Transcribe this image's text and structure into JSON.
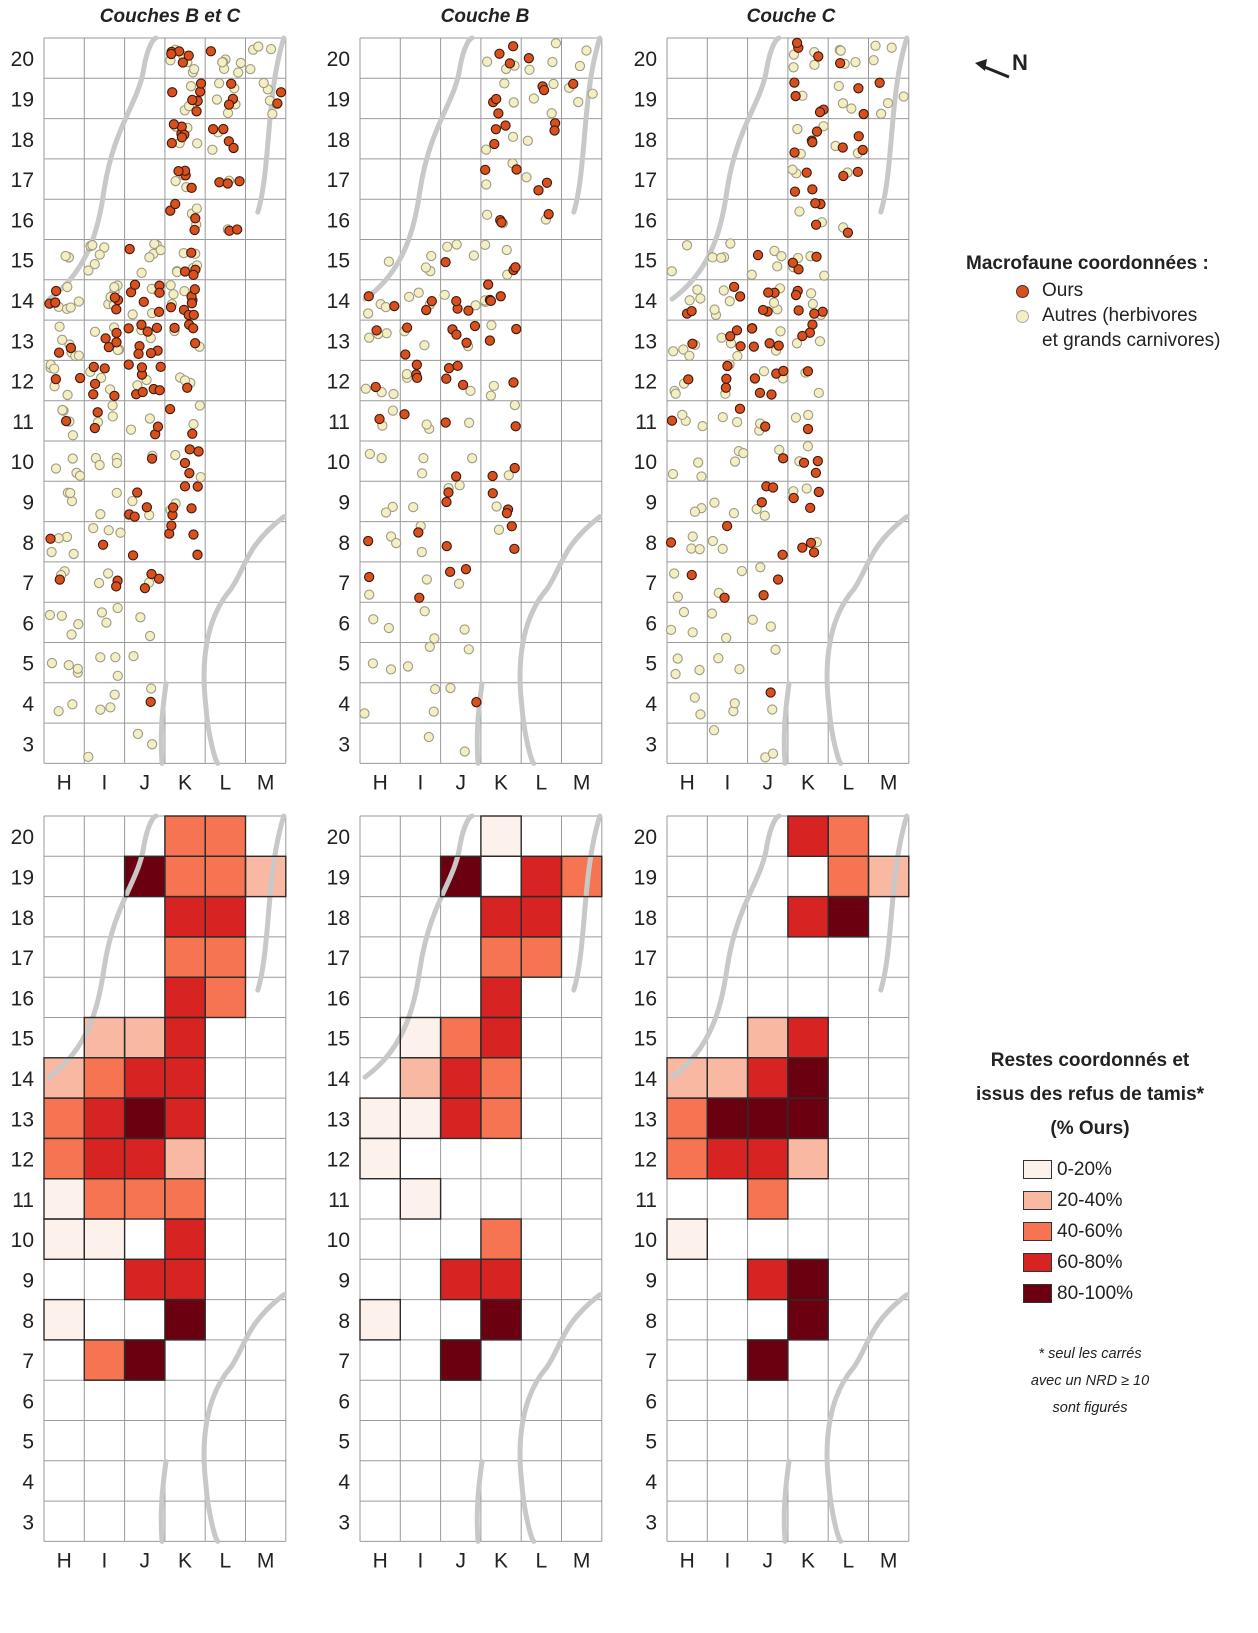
{
  "panel_titles": [
    "Couches B et C",
    "Couche B",
    "Couche C"
  ],
  "north_label": "N",
  "columns": [
    "H",
    "I",
    "J",
    "K",
    "L",
    "M"
  ],
  "rows": [
    "20",
    "19",
    "18",
    "17",
    "16",
    "15",
    "14",
    "13",
    "12",
    "11",
    "10",
    "9",
    "8",
    "7",
    "6",
    "5",
    "4",
    "3"
  ],
  "legend_points": {
    "title": "Macrofaune coordonnées :",
    "items": [
      {
        "label": "Ours",
        "color": "#d9501e"
      },
      {
        "label": "Autres (herbivores",
        "label2": "et grands carnivores)",
        "color": "#f4efc3"
      }
    ]
  },
  "legend_classes": {
    "title_lines": [
      "Restes coordonnés et",
      "issus des refus de tamis*",
      "(% Ours)"
    ],
    "classes": [
      {
        "label": "0-20%",
        "color": "#fdf1ec"
      },
      {
        "label": "20-40%",
        "color": "#f9b8a2"
      },
      {
        "label": "40-60%",
        "color": "#f77452"
      },
      {
        "label": "60-80%",
        "color": "#d72322"
      },
      {
        "label": "80-100%",
        "color": "#6b0011"
      }
    ],
    "note_lines": [
      "* seul les carrés",
      "avec un NRD ≥ 10",
      "sont figurés"
    ]
  },
  "scatter_colors": {
    "ours": "#d9501e",
    "autres": "#f4efc3"
  },
  "choropleth": [
    {
      "panel": "Couches B et C",
      "cells": [
        {
          "col": "K",
          "row": 20,
          "cls": 2
        },
        {
          "col": "L",
          "row": 20,
          "cls": 2
        },
        {
          "col": "J",
          "row": 19,
          "cls": 4
        },
        {
          "col": "K",
          "row": 19,
          "cls": 2
        },
        {
          "col": "L",
          "row": 19,
          "cls": 2
        },
        {
          "col": "M",
          "row": 19,
          "cls": 1
        },
        {
          "col": "K",
          "row": 18,
          "cls": 3
        },
        {
          "col": "L",
          "row": 18,
          "cls": 3
        },
        {
          "col": "K",
          "row": 17,
          "cls": 2
        },
        {
          "col": "L",
          "row": 17,
          "cls": 2
        },
        {
          "col": "K",
          "row": 16,
          "cls": 3
        },
        {
          "col": "L",
          "row": 16,
          "cls": 2
        },
        {
          "col": "I",
          "row": 15,
          "cls": 1
        },
        {
          "col": "J",
          "row": 15,
          "cls": 1
        },
        {
          "col": "K",
          "row": 15,
          "cls": 3
        },
        {
          "col": "H",
          "row": 14,
          "cls": 1
        },
        {
          "col": "I",
          "row": 14,
          "cls": 2
        },
        {
          "col": "J",
          "row": 14,
          "cls": 3
        },
        {
          "col": "K",
          "row": 14,
          "cls": 3
        },
        {
          "col": "H",
          "row": 13,
          "cls": 2
        },
        {
          "col": "I",
          "row": 13,
          "cls": 3
        },
        {
          "col": "J",
          "row": 13,
          "cls": 4
        },
        {
          "col": "K",
          "row": 13,
          "cls": 3
        },
        {
          "col": "H",
          "row": 12,
          "cls": 2
        },
        {
          "col": "I",
          "row": 12,
          "cls": 3
        },
        {
          "col": "J",
          "row": 12,
          "cls": 3
        },
        {
          "col": "K",
          "row": 12,
          "cls": 1
        },
        {
          "col": "H",
          "row": 11,
          "cls": 0
        },
        {
          "col": "I",
          "row": 11,
          "cls": 2
        },
        {
          "col": "J",
          "row": 11,
          "cls": 2
        },
        {
          "col": "K",
          "row": 11,
          "cls": 2
        },
        {
          "col": "H",
          "row": 10,
          "cls": 0
        },
        {
          "col": "I",
          "row": 10,
          "cls": 0
        },
        {
          "col": "K",
          "row": 10,
          "cls": 3
        },
        {
          "col": "J",
          "row": 9,
          "cls": 3
        },
        {
          "col": "K",
          "row": 9,
          "cls": 3
        },
        {
          "col": "H",
          "row": 8,
          "cls": 0
        },
        {
          "col": "K",
          "row": 8,
          "cls": 4
        },
        {
          "col": "I",
          "row": 7,
          "cls": 2
        },
        {
          "col": "J",
          "row": 7,
          "cls": 4
        }
      ]
    },
    {
      "panel": "Couche B",
      "cells": [
        {
          "col": "K",
          "row": 20,
          "cls": 0
        },
        {
          "col": "J",
          "row": 19,
          "cls": 4
        },
        {
          "col": "K",
          "row": 19,
          "cls": -1
        },
        {
          "col": "L",
          "row": 19,
          "cls": 3
        },
        {
          "col": "M",
          "row": 19,
          "cls": 2
        },
        {
          "col": "K",
          "row": 18,
          "cls": 3
        },
        {
          "col": "L",
          "row": 18,
          "cls": 3
        },
        {
          "col": "K",
          "row": 17,
          "cls": 2
        },
        {
          "col": "L",
          "row": 17,
          "cls": 2
        },
        {
          "col": "K",
          "row": 16,
          "cls": 3
        },
        {
          "col": "I",
          "row": 15,
          "cls": 0
        },
        {
          "col": "J",
          "row": 15,
          "cls": 2
        },
        {
          "col": "K",
          "row": 15,
          "cls": 3
        },
        {
          "col": "I",
          "row": 14,
          "cls": 1
        },
        {
          "col": "J",
          "row": 14,
          "cls": 3
        },
        {
          "col": "K",
          "row": 14,
          "cls": 2
        },
        {
          "col": "H",
          "row": 13,
          "cls": 0
        },
        {
          "col": "I",
          "row": 13,
          "cls": 0
        },
        {
          "col": "J",
          "row": 13,
          "cls": 3
        },
        {
          "col": "K",
          "row": 13,
          "cls": 2
        },
        {
          "col": "H",
          "row": 12,
          "cls": 0
        },
        {
          "col": "I",
          "row": 11,
          "cls": 0
        },
        {
          "col": "K",
          "row": 10,
          "cls": 2
        },
        {
          "col": "J",
          "row": 9,
          "cls": 3
        },
        {
          "col": "K",
          "row": 9,
          "cls": 3
        },
        {
          "col": "H",
          "row": 8,
          "cls": 0
        },
        {
          "col": "K",
          "row": 8,
          "cls": 4
        },
        {
          "col": "J",
          "row": 7,
          "cls": 4
        }
      ]
    },
    {
      "panel": "Couche C",
      "cells": [
        {
          "col": "K",
          "row": 20,
          "cls": 3
        },
        {
          "col": "L",
          "row": 20,
          "cls": 2
        },
        {
          "col": "L",
          "row": 19,
          "cls": 2
        },
        {
          "col": "M",
          "row": 19,
          "cls": 1
        },
        {
          "col": "K",
          "row": 18,
          "cls": 3
        },
        {
          "col": "L",
          "row": 18,
          "cls": 4
        },
        {
          "col": "J",
          "row": 15,
          "cls": 1
        },
        {
          "col": "K",
          "row": 15,
          "cls": 3
        },
        {
          "col": "H",
          "row": 14,
          "cls": 1
        },
        {
          "col": "I",
          "row": 14,
          "cls": 1
        },
        {
          "col": "J",
          "row": 14,
          "cls": 3
        },
        {
          "col": "K",
          "row": 14,
          "cls": 4
        },
        {
          "col": "H",
          "row": 13,
          "cls": 2
        },
        {
          "col": "I",
          "row": 13,
          "cls": 4
        },
        {
          "col": "J",
          "row": 13,
          "cls": 4
        },
        {
          "col": "K",
          "row": 13,
          "cls": 4
        },
        {
          "col": "H",
          "row": 12,
          "cls": 2
        },
        {
          "col": "I",
          "row": 12,
          "cls": 3
        },
        {
          "col": "J",
          "row": 12,
          "cls": 3
        },
        {
          "col": "K",
          "row": 12,
          "cls": 1
        },
        {
          "col": "J",
          "row": 11,
          "cls": 2
        },
        {
          "col": "H",
          "row": 10,
          "cls": 0
        },
        {
          "col": "J",
          "row": 9,
          "cls": 3
        },
        {
          "col": "K",
          "row": 9,
          "cls": 4
        },
        {
          "col": "K",
          "row": 8,
          "cls": 4
        },
        {
          "col": "J",
          "row": 7,
          "cls": 4
        }
      ]
    }
  ]
}
